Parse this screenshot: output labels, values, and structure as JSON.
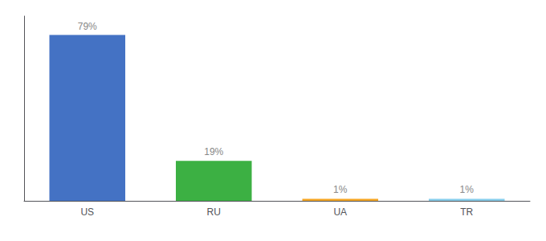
{
  "chart_data": {
    "type": "bar",
    "categories": [
      "US",
      "RU",
      "UA",
      "TR"
    ],
    "values": [
      79,
      19,
      1,
      1
    ],
    "value_labels": [
      "79%",
      "19%",
      "1%",
      "1%"
    ],
    "colors": [
      "#4472c4",
      "#3cb043",
      "#f5a623",
      "#87ceeb"
    ],
    "data_labels": true,
    "ylim": [
      0,
      88
    ],
    "grid": false,
    "tick_labels": "x"
  }
}
